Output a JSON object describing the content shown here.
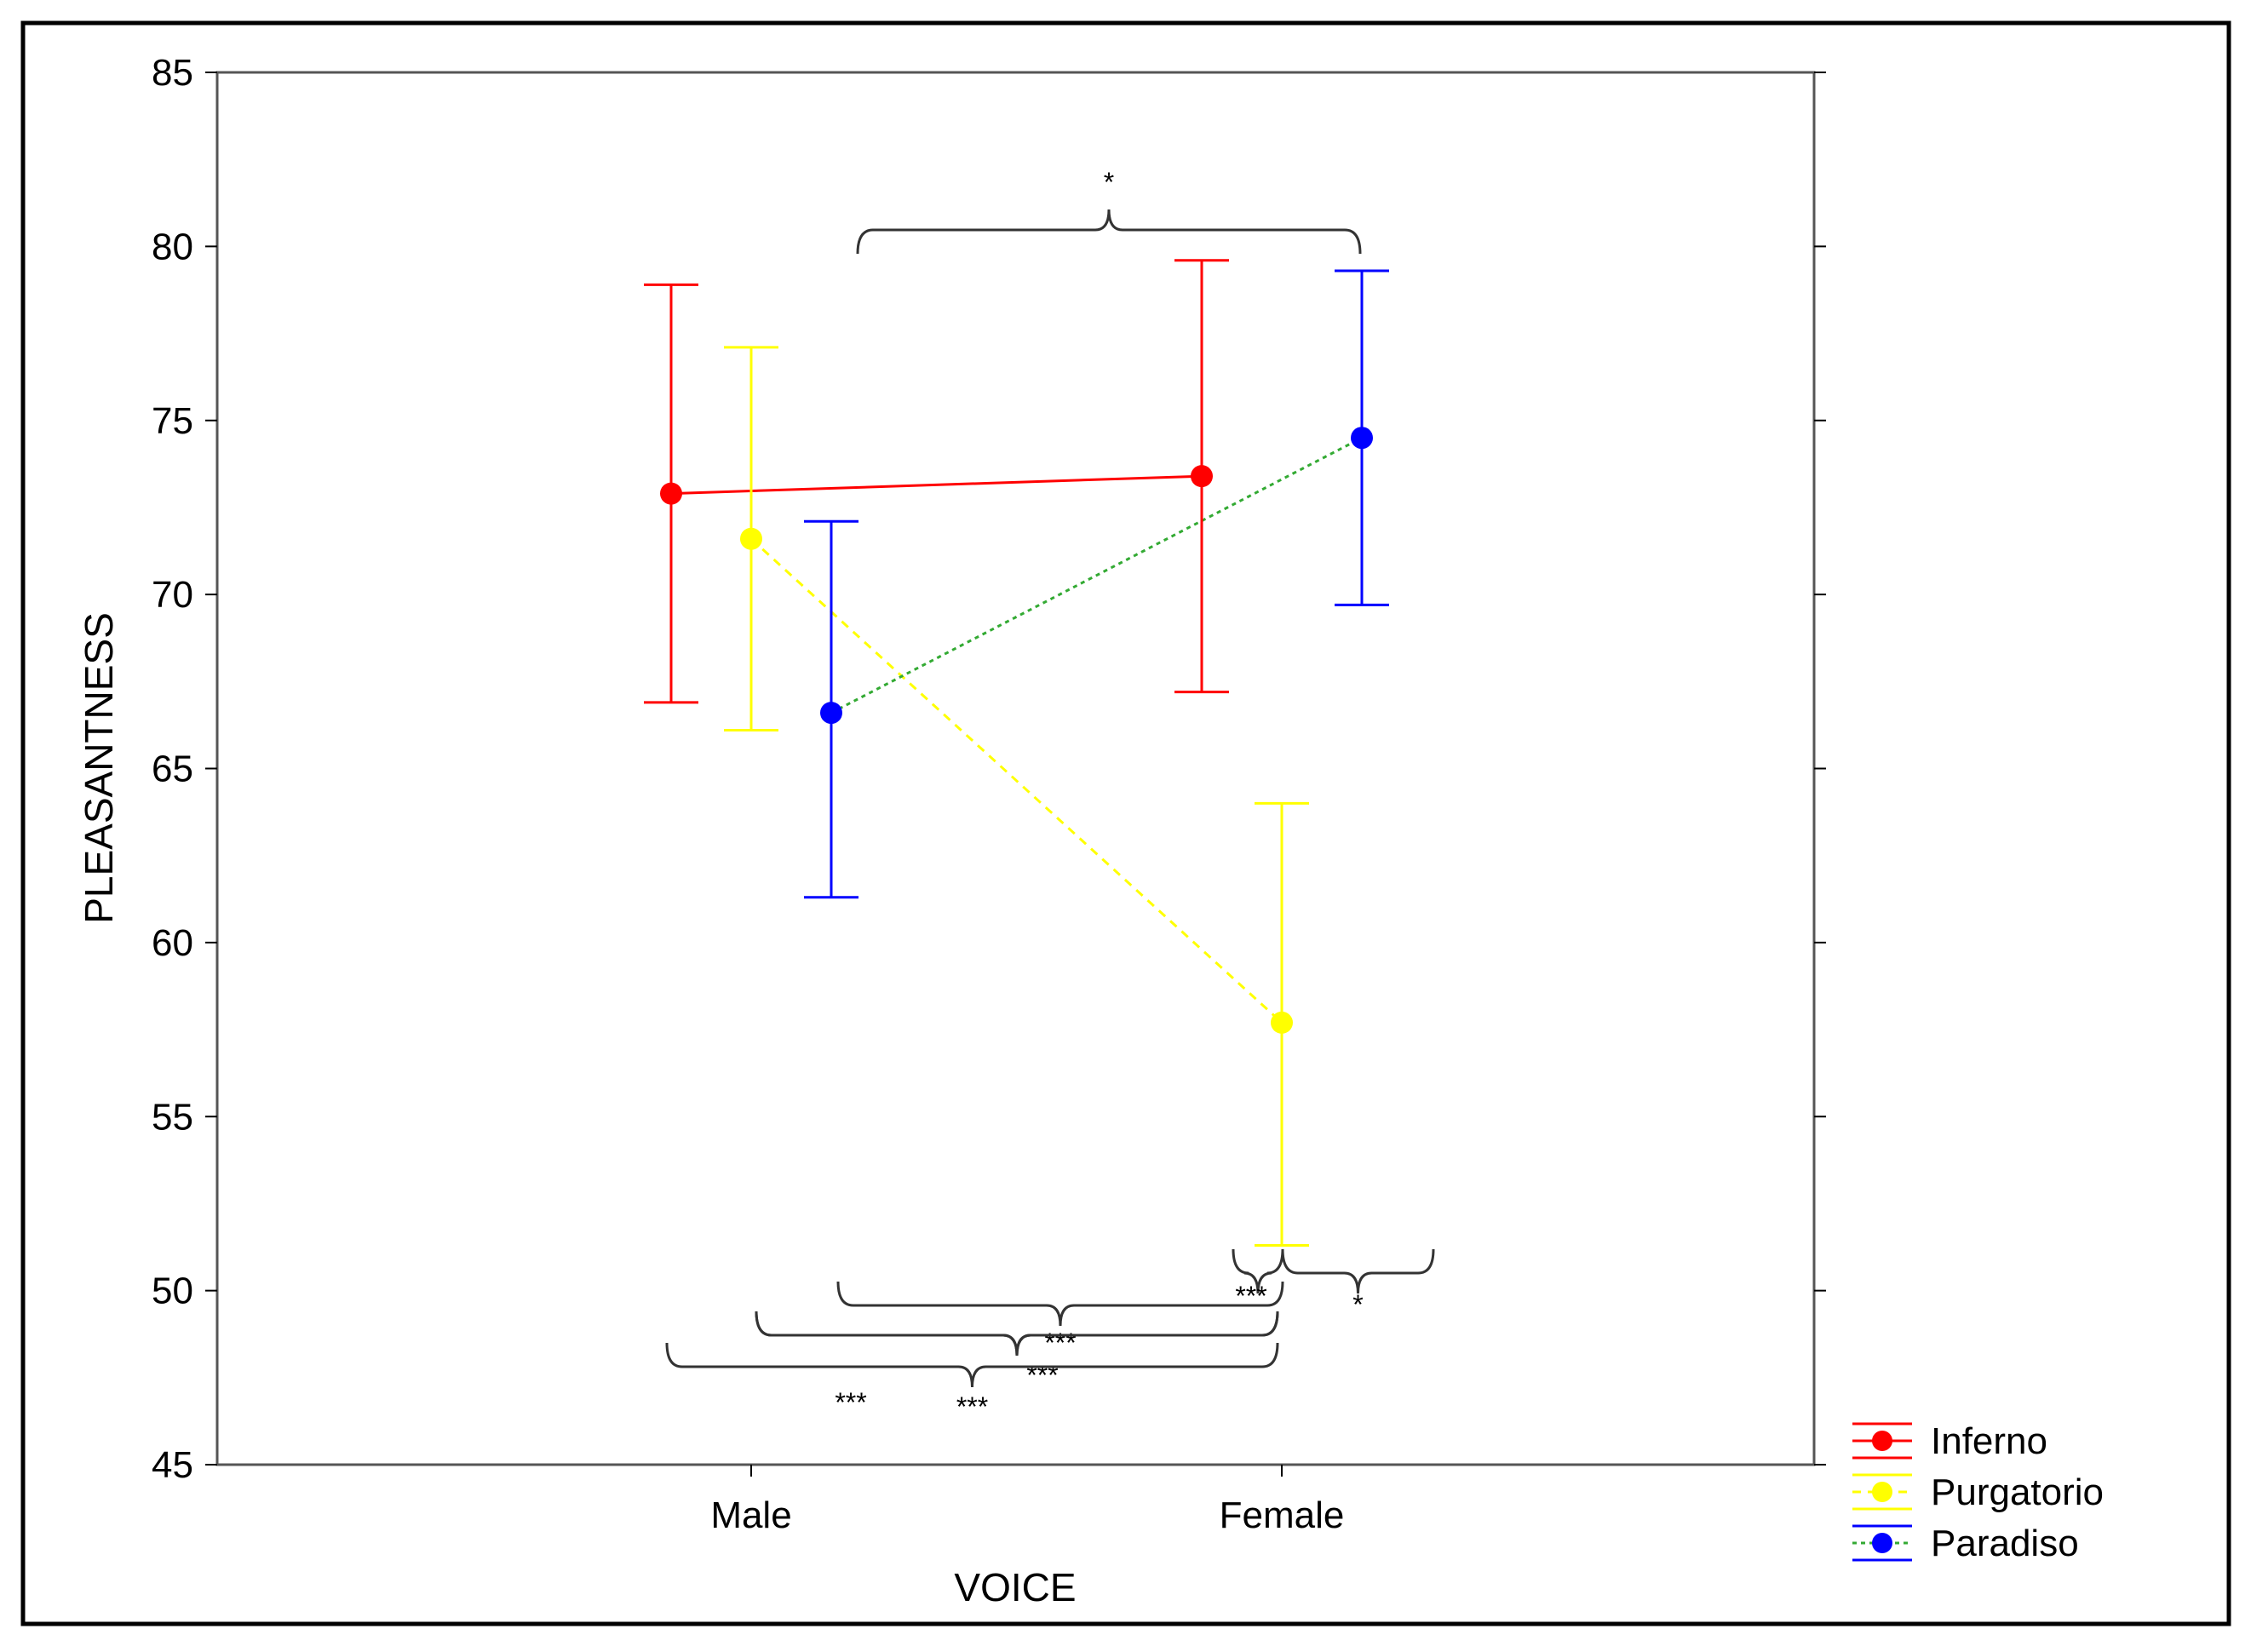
{
  "chart_data": {
    "type": "line",
    "xlabel": "VOICE",
    "ylabel": "PLEASANTNESS",
    "ylim": [
      45,
      85
    ],
    "yticks": [
      45,
      50,
      55,
      60,
      65,
      70,
      75,
      80,
      85
    ],
    "categories": [
      "Male",
      "Female"
    ],
    "grid": false,
    "legend_position": "bottom-right",
    "series": [
      {
        "name": "Inferno",
        "color": "#ff0000",
        "line_style": "solid",
        "values": [
          72.9,
          73.4
        ],
        "error_low": [
          66.9,
          67.2
        ],
        "error_high": [
          78.9,
          79.6
        ]
      },
      {
        "name": "Purgatorio",
        "color": "#ffff00",
        "line_style": "dashed",
        "values": [
          71.6,
          57.7
        ],
        "error_low": [
          66.1,
          51.3
        ],
        "error_high": [
          77.1,
          64.0
        ]
      },
      {
        "name": "Paradiso",
        "color": "#0000ff",
        "line_color": "#33aa33",
        "line_style": "dotted",
        "values": [
          66.6,
          74.5
        ],
        "error_low": [
          61.3,
          69.7
        ],
        "error_high": [
          72.1,
          79.3
        ]
      }
    ],
    "annotations": [
      "*",
      "***",
      "***",
      "*",
      "***",
      "***",
      "***"
    ]
  }
}
